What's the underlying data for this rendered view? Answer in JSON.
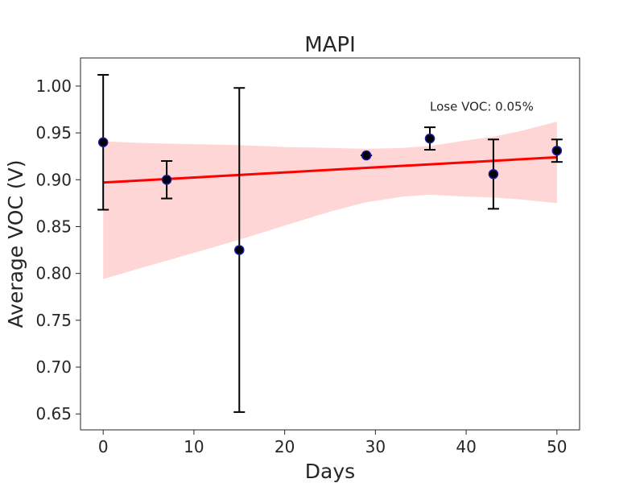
{
  "chart_data": {
    "type": "scatter",
    "title": "MAPI",
    "xlabel": "Days",
    "ylabel": "Average VOC (V)",
    "xlim": [
      -2.5,
      52.5
    ],
    "ylim": [
      0.633,
      1.03
    ],
    "x_ticks": [
      0,
      10,
      20,
      30,
      40,
      50
    ],
    "x_tick_labels": [
      "0",
      "10",
      "20",
      "30",
      "40",
      "50"
    ],
    "y_ticks": [
      0.65,
      0.7,
      0.75,
      0.8,
      0.85,
      0.9,
      0.95,
      1.0
    ],
    "y_tick_labels": [
      "0.65",
      "0.70",
      "0.75",
      "0.80",
      "0.85",
      "0.90",
      "0.95",
      "1.00"
    ],
    "grid": false,
    "points": [
      {
        "x": 0,
        "y": 0.94,
        "ylow": 0.868,
        "yhigh": 1.012
      },
      {
        "x": 7,
        "y": 0.9,
        "ylow": 0.88,
        "yhigh": 0.92
      },
      {
        "x": 15,
        "y": 0.825,
        "ylow": 0.652,
        "yhigh": 0.998
      },
      {
        "x": 29,
        "y": 0.926,
        "ylow": 0.926,
        "yhigh": 0.926
      },
      {
        "x": 36,
        "y": 0.944,
        "ylow": 0.932,
        "yhigh": 0.956
      },
      {
        "x": 43,
        "y": 0.906,
        "ylow": 0.869,
        "yhigh": 0.943
      },
      {
        "x": 50,
        "y": 0.931,
        "ylow": 0.919,
        "yhigh": 0.943
      }
    ],
    "fit_line": {
      "x": [
        0,
        50
      ],
      "y": [
        0.897,
        0.924
      ]
    },
    "confidence_band": {
      "x": [
        0,
        5,
        10,
        15,
        20,
        25,
        29,
        33,
        36,
        40,
        43,
        46,
        50
      ],
      "upper": [
        0.941,
        0.939,
        0.938,
        0.937,
        0.935,
        0.934,
        0.933,
        0.934,
        0.936,
        0.942,
        0.946,
        0.952,
        0.962
      ],
      "lower": [
        0.794,
        0.808,
        0.822,
        0.836,
        0.851,
        0.866,
        0.876,
        0.882,
        0.884,
        0.882,
        0.881,
        0.879,
        0.875
      ]
    },
    "annotation": {
      "text": "Lose VOC: 0.05%",
      "x": 36,
      "y": 0.978
    },
    "colors": {
      "fit_line": "#ff0000",
      "band": "#ffd6d6",
      "marker_fill": "#000000",
      "marker_edge": "#1a1aa6",
      "errorbar": "#000000",
      "axis": "#262626"
    }
  }
}
